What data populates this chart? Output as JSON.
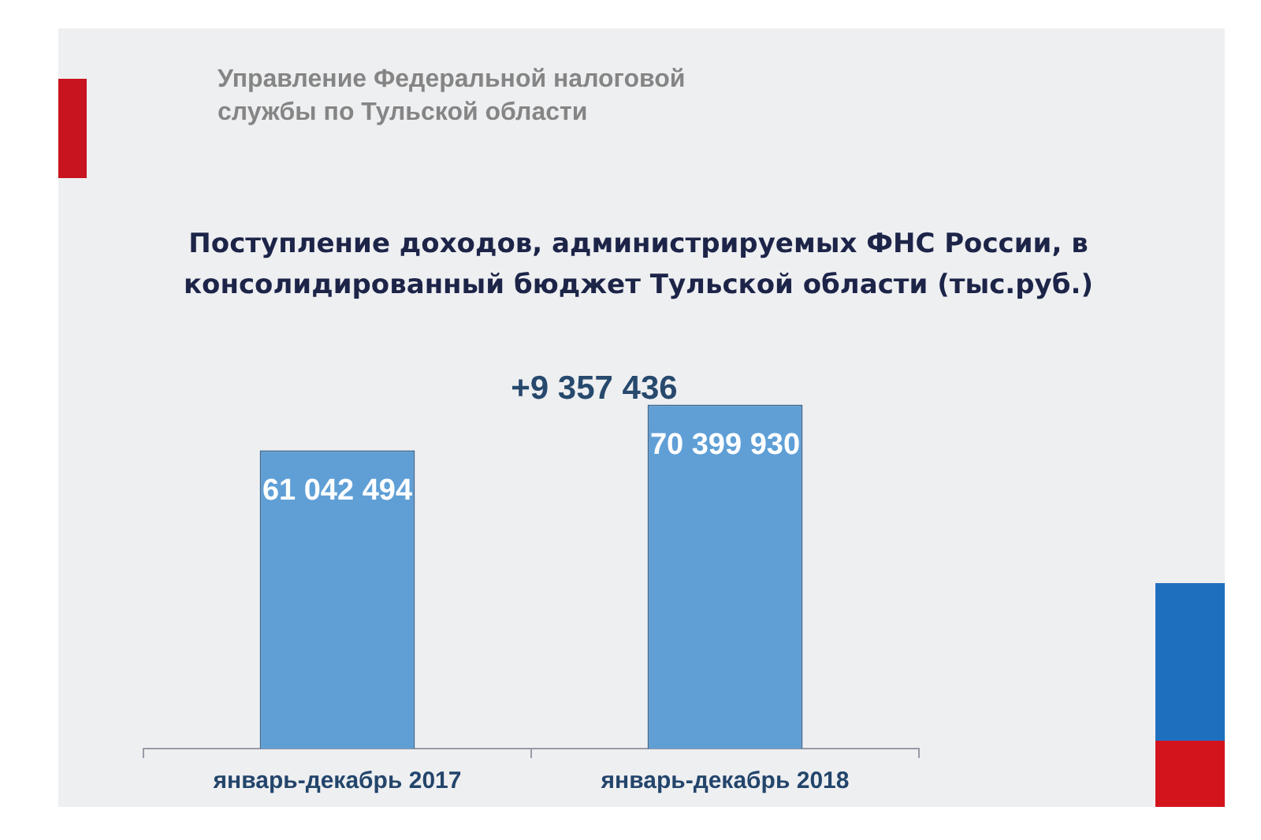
{
  "chart_data": {
    "type": "bar",
    "title": "Поступление доходов, администрируемых ФНС России, в консолидированный бюджет Тульской области (тыс.руб.)",
    "annotations": [
      "Управление Федеральной налоговой службы по Тульской области",
      "+9 357 436"
    ],
    "categories": [
      "январь-декабрь 2017",
      "январь-декабрь 2018"
    ],
    "values": [
      61042494,
      70399930
    ],
    "color": "#5f9fd6",
    "value_labels": [
      "61 042 494",
      "70 399 930"
    ],
    "tick_labels": "x",
    "grid": false,
    "legend": false
  }
}
